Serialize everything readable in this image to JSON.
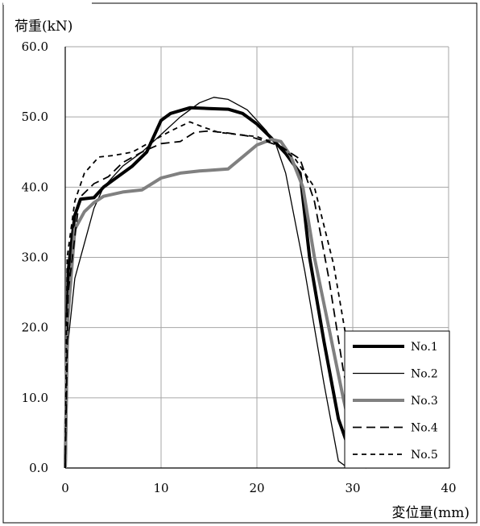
{
  "chart_data": {
    "type": "line",
    "ylabel": "荷重(kN)",
    "xlabel": "変位量(mm)",
    "xlim": [
      0,
      40
    ],
    "ylim": [
      0,
      60
    ],
    "x_ticks": [
      "0",
      "10",
      "20",
      "30",
      "40"
    ],
    "y_ticks": [
      "0.0",
      "10.0",
      "20.0",
      "30.0",
      "40.0",
      "50.0",
      "60.0"
    ],
    "grid": true,
    "legend_position": "bottom-right",
    "series": [
      {
        "name": "No.1",
        "style": "solid",
        "width": "thick",
        "color": "#000000",
        "points": [
          [
            0,
            0
          ],
          [
            0.3,
            28
          ],
          [
            1,
            36
          ],
          [
            1.6,
            38.3
          ],
          [
            3,
            38.5
          ],
          [
            4,
            40
          ],
          [
            5.5,
            41.5
          ],
          [
            7,
            43
          ],
          [
            8.5,
            45
          ],
          [
            10,
            49.5
          ],
          [
            11,
            50.5
          ],
          [
            13,
            51.3
          ],
          [
            15,
            51.2
          ],
          [
            17,
            51.1
          ],
          [
            18.5,
            50.5
          ],
          [
            20,
            49
          ],
          [
            21.5,
            47
          ],
          [
            23,
            44.8
          ],
          [
            24.5,
            42
          ],
          [
            25.5,
            30
          ],
          [
            27,
            18
          ],
          [
            28.5,
            7
          ],
          [
            29.8,
            2
          ],
          [
            31,
            0.3
          ],
          [
            33,
            0.3
          ]
        ]
      },
      {
        "name": "No.2",
        "style": "solid",
        "width": "thin",
        "color": "#000000",
        "points": [
          [
            0,
            0
          ],
          [
            0.3,
            18
          ],
          [
            1,
            27
          ],
          [
            2,
            32
          ],
          [
            3,
            37
          ],
          [
            4,
            40
          ],
          [
            6,
            43
          ],
          [
            8,
            45
          ],
          [
            10,
            47.5
          ],
          [
            12,
            50
          ],
          [
            14,
            52
          ],
          [
            15.5,
            52.8
          ],
          [
            17,
            52.5
          ],
          [
            19,
            51
          ],
          [
            21,
            48
          ],
          [
            22,
            46
          ],
          [
            23,
            42
          ],
          [
            25,
            28
          ],
          [
            27,
            12
          ],
          [
            28.5,
            1
          ],
          [
            29.5,
            0
          ]
        ]
      },
      {
        "name": "No.3",
        "style": "solid",
        "width": "thick",
        "color": "#808080",
        "points": [
          [
            0,
            0
          ],
          [
            0.2,
            20
          ],
          [
            1,
            34
          ],
          [
            2,
            36.5
          ],
          [
            3,
            37.8
          ],
          [
            4,
            38.7
          ],
          [
            6,
            39.3
          ],
          [
            8,
            39.6
          ],
          [
            10,
            41.3
          ],
          [
            12,
            42
          ],
          [
            14,
            42.3
          ],
          [
            17,
            42.6
          ],
          [
            18.5,
            44.3
          ],
          [
            20,
            46
          ],
          [
            21.5,
            46.8
          ],
          [
            22.5,
            46.5
          ],
          [
            23.5,
            44.5
          ],
          [
            24.8,
            40
          ],
          [
            26,
            30
          ],
          [
            27.5,
            20
          ],
          [
            29,
            10
          ],
          [
            30.2,
            3
          ],
          [
            31.5,
            0
          ]
        ]
      },
      {
        "name": "No.4",
        "style": "long-dash",
        "width": "normal",
        "color": "#000000",
        "points": [
          [
            0,
            0
          ],
          [
            0.3,
            25
          ],
          [
            1.5,
            38.5
          ],
          [
            3,
            40.5
          ],
          [
            4.5,
            41.5
          ],
          [
            6,
            43.5
          ],
          [
            8,
            45
          ],
          [
            10,
            46.2
          ],
          [
            12,
            46.5
          ],
          [
            13.5,
            47.8
          ],
          [
            15,
            48
          ],
          [
            17,
            47.7
          ],
          [
            19,
            47.3
          ],
          [
            21,
            46.5
          ],
          [
            22.5,
            45.8
          ],
          [
            24.5,
            44
          ],
          [
            26,
            38
          ],
          [
            27.5,
            27
          ],
          [
            29,
            14
          ],
          [
            30.5,
            4
          ],
          [
            31.5,
            0
          ]
        ]
      },
      {
        "name": "No.5",
        "style": "short-dash",
        "width": "normal",
        "color": "#000000",
        "points": [
          [
            0,
            0
          ],
          [
            0.2,
            30
          ],
          [
            1,
            38
          ],
          [
            2,
            42
          ],
          [
            3.5,
            44.3
          ],
          [
            5,
            44.5
          ],
          [
            7,
            45
          ],
          [
            9,
            46.5
          ],
          [
            11,
            48
          ],
          [
            13,
            49.3
          ],
          [
            14.5,
            48.5
          ],
          [
            16,
            47.8
          ],
          [
            18,
            47.5
          ],
          [
            20,
            47.2
          ],
          [
            22,
            46.2
          ],
          [
            24,
            44
          ],
          [
            26,
            40
          ],
          [
            28,
            29
          ],
          [
            29.5,
            17
          ],
          [
            30.8,
            5
          ],
          [
            32,
            0
          ]
        ]
      }
    ]
  }
}
